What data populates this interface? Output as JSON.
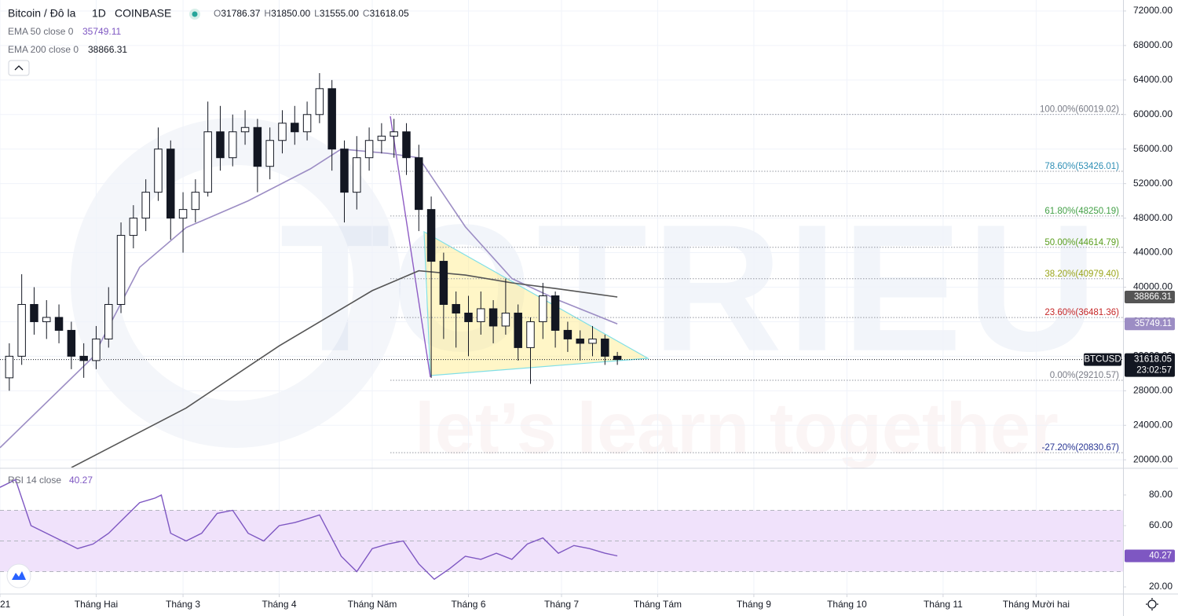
{
  "header": {
    "symbol": "Bitcoin / Đô la",
    "interval": "1D",
    "exchange": "COINBASE",
    "ohlc": [
      {
        "key": "O",
        "value": "31786.37"
      },
      {
        "key": "H",
        "value": "31850.00"
      },
      {
        "key": "L",
        "value": "31555.00"
      },
      {
        "key": "C",
        "value": "31618.05"
      }
    ]
  },
  "watermark": {
    "logo": "TOTRIEU",
    "tagline": "let’s learn together"
  },
  "chart_data": [
    {
      "type": "candlestick",
      "up_color": "#ffffff",
      "down_color": "#131722",
      "x": [
        3,
        7,
        11,
        15,
        19,
        23,
        27,
        31,
        35,
        39,
        43,
        47,
        51,
        55,
        59,
        63,
        67,
        71,
        75,
        79,
        83,
        87,
        91,
        95,
        99,
        103,
        107,
        111,
        115,
        119,
        123,
        127,
        131,
        135,
        139,
        143,
        147,
        151,
        155,
        159,
        163,
        167,
        171,
        175,
        179,
        183,
        187,
        191,
        195,
        199
      ],
      "open": [
        29500,
        32000,
        38000,
        36000,
        36500,
        35000,
        32000,
        31500,
        34000,
        38000,
        46000,
        48000,
        51000,
        56000,
        48000,
        49000,
        51000,
        58000,
        55000,
        58000,
        58500,
        54000,
        57000,
        59000,
        58000,
        60000,
        63000,
        56000,
        51000,
        55000,
        57000,
        57500,
        58000,
        55000,
        49000,
        43000,
        38000,
        37000,
        36000,
        37500,
        35500,
        37000,
        33000,
        36000,
        39000,
        35000,
        34000,
        33500,
        34000,
        32000
      ],
      "high": [
        33500,
        41500,
        40000,
        38500,
        38000,
        36000,
        33500,
        35500,
        40000,
        47500,
        49500,
        52500,
        58500,
        57000,
        51000,
        52500,
        61500,
        61000,
        60000,
        60500,
        59500,
        58500,
        60500,
        61000,
        61500,
        64800,
        64000,
        57000,
        57500,
        58500,
        59000,
        59500,
        59000,
        56500,
        50500,
        44000,
        39500,
        39000,
        39500,
        38500,
        41000,
        38000,
        36500,
        40500,
        39500,
        36000,
        35000,
        35500,
        34500,
        32500
      ],
      "low": [
        28000,
        31000,
        34500,
        34000,
        33500,
        30500,
        29500,
        30500,
        33000,
        37000,
        44500,
        46500,
        50000,
        45500,
        44000,
        47500,
        50500,
        53500,
        54000,
        56500,
        51000,
        52500,
        55500,
        56500,
        57000,
        59000,
        53500,
        47500,
        49000,
        53500,
        55500,
        55000,
        53000,
        46500,
        29500,
        34000,
        33000,
        32000,
        34500,
        33500,
        34500,
        31500,
        28800,
        34000,
        33000,
        32500,
        31500,
        32000,
        31000,
        31000
      ],
      "close": [
        32000,
        38000,
        36000,
        36500,
        35000,
        32000,
        31500,
        34000,
        38000,
        46000,
        48000,
        51000,
        56000,
        48000,
        49000,
        51000,
        58000,
        55000,
        58000,
        58500,
        54000,
        57000,
        59000,
        58000,
        60000,
        63000,
        56000,
        51000,
        55000,
        57000,
        57500,
        58000,
        55000,
        49000,
        43000,
        38000,
        37000,
        36000,
        37500,
        35500,
        37000,
        33000,
        36000,
        39000,
        35000,
        34000,
        33500,
        34000,
        32000,
        31618.05
      ],
      "series": [
        {
          "name": "EMA 50 close 0",
          "color": "#9c8dc4",
          "last": 35749.11,
          "x": [
            0,
            30,
            45,
            60,
            80,
            100,
            110,
            125,
            135,
            150,
            165,
            180,
            199
          ],
          "values": [
            21400,
            31900,
            42300,
            46900,
            50000,
            53700,
            56000,
            55500,
            55000,
            47000,
            41000,
            38500,
            35749.11
          ]
        },
        {
          "name": "EMA 200 close 0",
          "color": "#555555",
          "last": 38866.31,
          "x": [
            23,
            60,
            90,
            120,
            135,
            150,
            165,
            180,
            199
          ],
          "values": [
            19100,
            26000,
            33200,
            39600,
            41900,
            41400,
            40500,
            39800,
            38866.31
          ]
        }
      ],
      "last_price": {
        "name": "BTCUSD",
        "value": 31618.05,
        "countdown": "23:02:57"
      },
      "fib_levels": [
        {
          "label": "100.00%(60019.02)",
          "value": 60019.02,
          "color": "#787b86"
        },
        {
          "label": "78.60%(53426.01)",
          "value": 53426.01,
          "color": "#2f8fb5"
        },
        {
          "label": "61.80%(48250.19)",
          "value": 48250.19,
          "color": "#43a047"
        },
        {
          "label": "50.00%(44614.79)",
          "value": 44614.79,
          "color": "#5a9e1e"
        },
        {
          "label": "38.20%(40979.40)",
          "value": 40979.4,
          "color": "#9aa51a"
        },
        {
          "label": "23.60%(36481.36)",
          "value": 36481.36,
          "color": "#c62828"
        },
        {
          "label": "0.00%(29210.57)",
          "value": 29210.57,
          "color": "#787b86"
        },
        {
          "label": "-27.20%(20830.67)",
          "value": 20830.67,
          "color": "#283593"
        }
      ],
      "xlim": [
        0,
        362
      ],
      "xticks": [
        {
          "value": 0,
          "label": "21"
        },
        {
          "value": 31,
          "label": "Tháng Hai"
        },
        {
          "value": 59,
          "label": "Tháng 3"
        },
        {
          "value": 90,
          "label": "Tháng 4"
        },
        {
          "value": 120,
          "label": "Tháng Năm"
        },
        {
          "value": 151,
          "label": "Tháng 6"
        },
        {
          "value": 181,
          "label": "Tháng 7"
        },
        {
          "value": 212,
          "label": "Tháng Tám"
        },
        {
          "value": 243,
          "label": "Tháng 9"
        },
        {
          "value": 273,
          "label": "Tháng 10"
        },
        {
          "value": 304,
          "label": "Tháng 11"
        },
        {
          "value": 334,
          "label": "Tháng Mười hai"
        }
      ],
      "ylim": [
        19110,
        73270
      ],
      "yticks": [
        {
          "value": 72000,
          "label": "72000.00"
        },
        {
          "value": 68000,
          "label": "68000.00"
        },
        {
          "value": 64000,
          "label": "64000.00"
        },
        {
          "value": 60000,
          "label": "60000.00"
        },
        {
          "value": 56000,
          "label": "56000.00"
        },
        {
          "value": 52000,
          "label": "52000.00"
        },
        {
          "value": 48000,
          "label": "48000.00"
        },
        {
          "value": 44000,
          "label": "44000.00"
        },
        {
          "value": 40000,
          "label": "40000.00"
        },
        {
          "value": 36000,
          "label": "36000.00"
        },
        {
          "value": 32000,
          "label": "32000.00"
        },
        {
          "value": 28000,
          "label": "28000.00"
        },
        {
          "value": 24000,
          "label": "24000.00"
        },
        {
          "value": 20000,
          "label": "20000.00"
        }
      ],
      "grid": true
    },
    {
      "type": "line",
      "title": "RSI 14 close",
      "last": 40.27,
      "color": "#7e57c2",
      "band": [
        30,
        70
      ],
      "band_color": "#f0e2fb",
      "midline": 50,
      "x": [
        0,
        5,
        10,
        15,
        20,
        25,
        30,
        35,
        40,
        45,
        50,
        52,
        55,
        60,
        65,
        70,
        75,
        80,
        85,
        90,
        95,
        100,
        103,
        110,
        115,
        120,
        125,
        130,
        135,
        140,
        145,
        150,
        155,
        160,
        165,
        170,
        175,
        180,
        185,
        190,
        195,
        199
      ],
      "values": [
        85,
        90,
        60,
        55,
        50,
        45,
        48,
        55,
        65,
        75,
        78,
        80,
        55,
        50,
        55,
        68,
        70,
        55,
        50,
        60,
        62,
        65,
        67,
        40,
        30,
        45,
        48,
        50,
        35,
        25,
        32,
        40,
        38,
        42,
        38,
        48,
        52,
        42,
        47,
        45,
        42,
        40.27
      ],
      "xlim": [
        0,
        362
      ],
      "ylim": [
        15.9,
        96.9
      ],
      "yticks": [
        {
          "value": 80,
          "label": "80.00"
        },
        {
          "value": 60,
          "label": "60.00"
        },
        {
          "value": 20,
          "label": "20.00"
        }
      ]
    }
  ]
}
